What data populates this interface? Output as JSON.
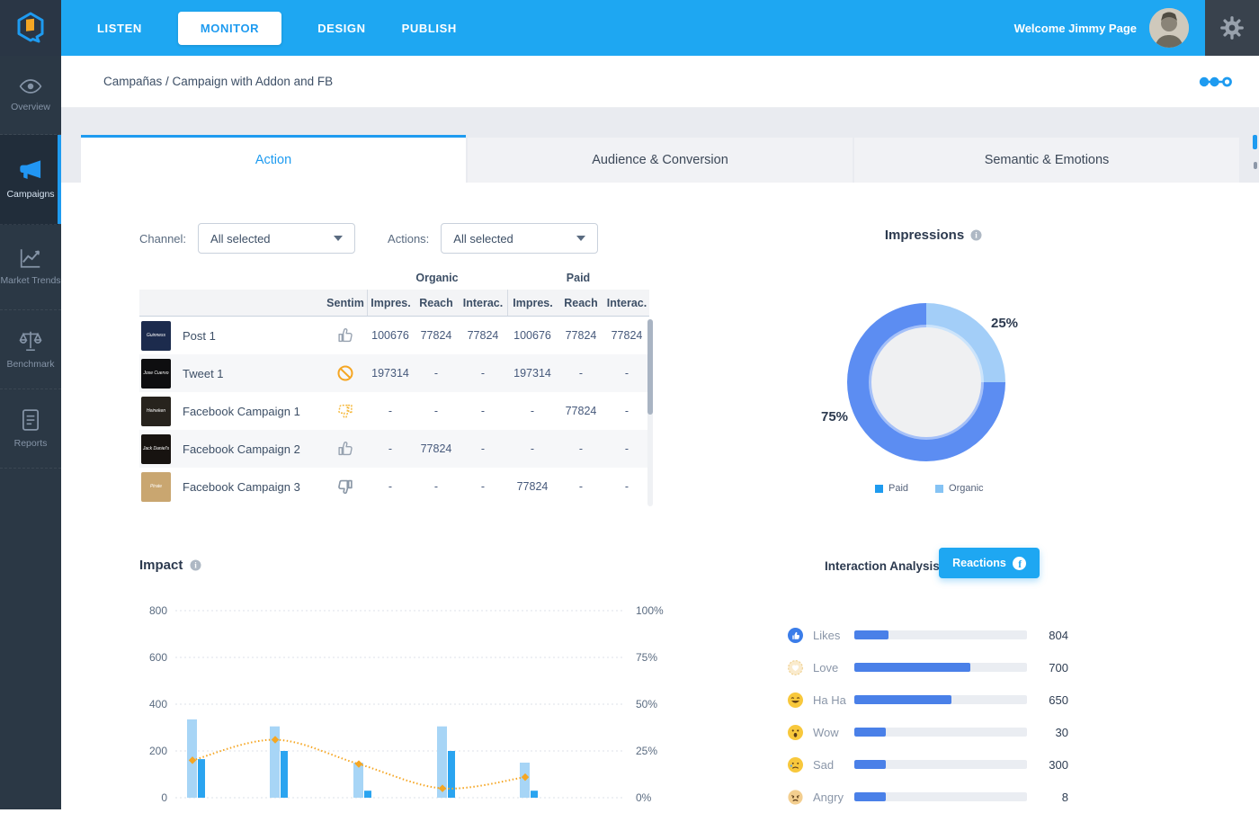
{
  "topbar": {
    "nav": [
      {
        "label": "LISTEN"
      },
      {
        "label": "MONITOR"
      },
      {
        "label": "DESIGN"
      },
      {
        "label": "PUBLISH"
      }
    ],
    "welcome": "Welcome Jimmy Page"
  },
  "breadcrumb": {
    "path": "Campañas / Campaign with Addon and FB"
  },
  "sidebar": {
    "items": [
      {
        "label": "Overview",
        "icon": "eye-icon"
      },
      {
        "label": "Campaigns",
        "icon": "megaphone-icon",
        "active": true
      },
      {
        "label": "Market Trends",
        "icon": "trend-icon"
      },
      {
        "label": "Benchmark",
        "icon": "scales-icon"
      },
      {
        "label": "Reports",
        "icon": "report-icon"
      }
    ]
  },
  "tabs": [
    {
      "label": "Action",
      "active": true
    },
    {
      "label": "Audience & Conversion"
    },
    {
      "label": "Semantic & Emotions"
    }
  ],
  "filters": {
    "channel_label": "Channel:",
    "channel_value": "All selected",
    "actions_label": "Actions:",
    "actions_value": "All selected"
  },
  "table": {
    "group_headers": {
      "organic": "Organic",
      "paid": "Paid"
    },
    "columns": [
      "Sentim",
      "Impres.",
      "Reach",
      "Interac.",
      "Impres.",
      "Reach",
      "Interac."
    ],
    "rows": [
      {
        "name": "Post 1",
        "logo_text": "Guinness",
        "logo_style": "background:#1C2B4D",
        "sentiment": "thumbs-up",
        "values": [
          "100676",
          "77824",
          "77824",
          "100676",
          "77824",
          "77824"
        ]
      },
      {
        "name": "Tweet 1",
        "logo_text": "Jose Cuervo",
        "logo_style": "background:#0E0E10",
        "sentiment": "ban",
        "values": [
          "197314",
          "-",
          "-",
          "197314",
          "-",
          "-"
        ]
      },
      {
        "name": "Facebook Campaign 1",
        "logo_text": "Heineken",
        "logo_style": "background:#27231D",
        "sentiment": "thumbs-down-orange",
        "values": [
          "-",
          "-",
          "-",
          "-",
          "77824",
          "-"
        ]
      },
      {
        "name": "Facebook Campaign 2",
        "logo_text": "Jack Daniel's",
        "logo_style": "background:#171310",
        "sentiment": "thumbs-up",
        "values": [
          "-",
          "77824",
          "-",
          "-",
          "-",
          "-"
        ]
      },
      {
        "name": "Facebook Campaign 3",
        "logo_text": "Pirate",
        "logo_style": "background:#C9A670",
        "sentiment": "thumbs-down",
        "values": [
          "-",
          "-",
          "-",
          "77824",
          "-",
          "-"
        ]
      }
    ]
  },
  "impressions": {
    "title": "Impressions",
    "labels": {
      "organic": "25%",
      "paid": "75%"
    },
    "legend": [
      {
        "label": "Paid",
        "color": "#1E9BEF"
      },
      {
        "label": "Organic",
        "color": "#85C3F4"
      }
    ]
  },
  "impact": {
    "title": "Impact"
  },
  "interaction": {
    "title": "Interaction Analysis",
    "button_label": "Reactions",
    "reactions": [
      {
        "label": "Likes",
        "value": "804",
        "icon": "like-icon",
        "fill_pct": 20
      },
      {
        "label": "Love",
        "value": "700",
        "icon": "love-icon",
        "fill_pct": 67
      },
      {
        "label": "Ha Ha",
        "value": "650",
        "icon": "haha-icon",
        "fill_pct": 56
      },
      {
        "label": "Wow",
        "value": "30",
        "icon": "wow-icon",
        "fill_pct": 18
      },
      {
        "label": "Sad",
        "value": "300",
        "icon": "sad-icon",
        "fill_pct": 18
      },
      {
        "label": "Angry",
        "value": "8",
        "icon": "angry-icon",
        "fill_pct": 18
      }
    ]
  },
  "chart_data": [
    {
      "id": "impressions",
      "type": "pie",
      "donut": true,
      "title": "Impressions",
      "slices": [
        {
          "label": "Paid",
          "value": 75
        },
        {
          "label": "Organic",
          "value": 25
        }
      ],
      "colors": {
        "paid": "#5C8DF2",
        "organic": "#A3CEF8"
      },
      "legend_position": "bottom"
    },
    {
      "id": "impact",
      "type": "bar",
      "title": "Impact",
      "grid": true,
      "series": [
        {
          "name": "organic-impressions",
          "values": [
            335,
            305,
            150,
            305,
            150
          ],
          "color": "#A7D5F6"
        },
        {
          "name": "paid-impressions",
          "values": [
            165,
            200,
            30,
            200,
            30
          ],
          "color": "#2AA4F0"
        },
        {
          "name": "rate-line",
          "type": "line",
          "values_pct": [
            20,
            31,
            18,
            5,
            11
          ],
          "color": "#F5A623"
        }
      ],
      "left_axis": {
        "ticks": [
          800,
          600,
          400,
          200,
          0
        ],
        "max": 800
      },
      "right_axis": {
        "ticks": [
          "100%",
          "75%",
          "50%",
          "25%",
          "0%"
        ],
        "max": 100
      }
    },
    {
      "id": "reactions",
      "type": "bar",
      "orientation": "horizontal",
      "categories": [
        "Likes",
        "Love",
        "Ha Ha",
        "Wow",
        "Sad",
        "Angry"
      ],
      "values": [
        804,
        700,
        650,
        30,
        300,
        8
      ],
      "bar_color": "#4A80E8"
    }
  ]
}
